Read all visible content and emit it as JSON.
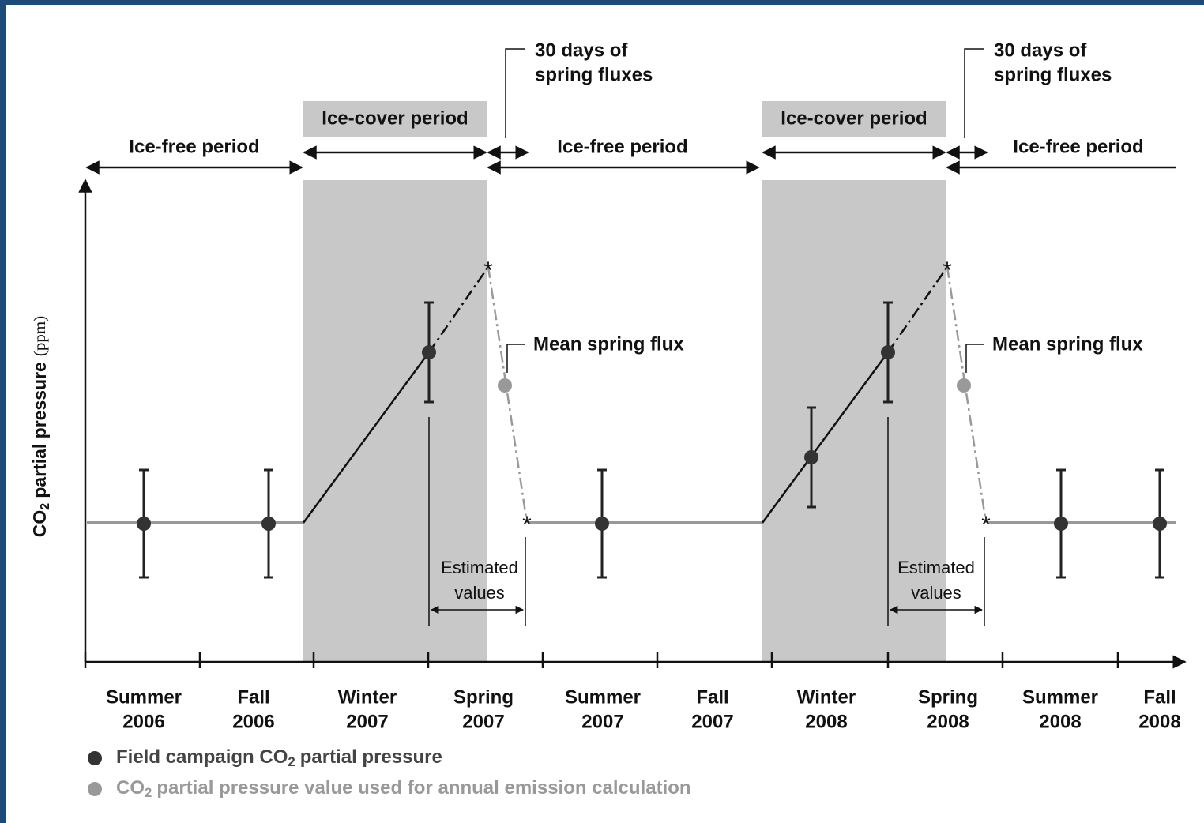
{
  "y_axis_label": [
    "CO",
    "2",
    "partial pressure",
    "(ppm)"
  ],
  "periods": [
    "Ice-free period",
    "Ice-cover period",
    "Ice-free period",
    "Ice-cover period",
    "Ice-free period"
  ],
  "spring_fluxes": [
    [
      "30 days of",
      "spring fluxes"
    ],
    [
      "30 days of",
      "spring fluxes"
    ]
  ],
  "mean_spring_flux": [
    "Mean spring flux",
    "Mean spring flux"
  ],
  "estimated_values": [
    [
      "Estimated",
      "values"
    ],
    [
      "Estimated",
      "values"
    ]
  ],
  "seasons": [
    [
      "Summer",
      "2006"
    ],
    [
      "Fall",
      "2006"
    ],
    [
      "Winter",
      "2007"
    ],
    [
      "Spring",
      "2007"
    ],
    [
      "Summer",
      "2007"
    ],
    [
      "Fall",
      "2007"
    ],
    [
      "Winter",
      "2008"
    ],
    [
      "Spring",
      "2008"
    ],
    [
      "Summer",
      "2008"
    ],
    [
      "Fall",
      "2008"
    ]
  ],
  "legend": [
    [
      "Field campaign CO",
      "2",
      "partial pressure"
    ],
    [
      "CO",
      "2",
      "partial pressure value used for annual emission calculation"
    ]
  ]
}
